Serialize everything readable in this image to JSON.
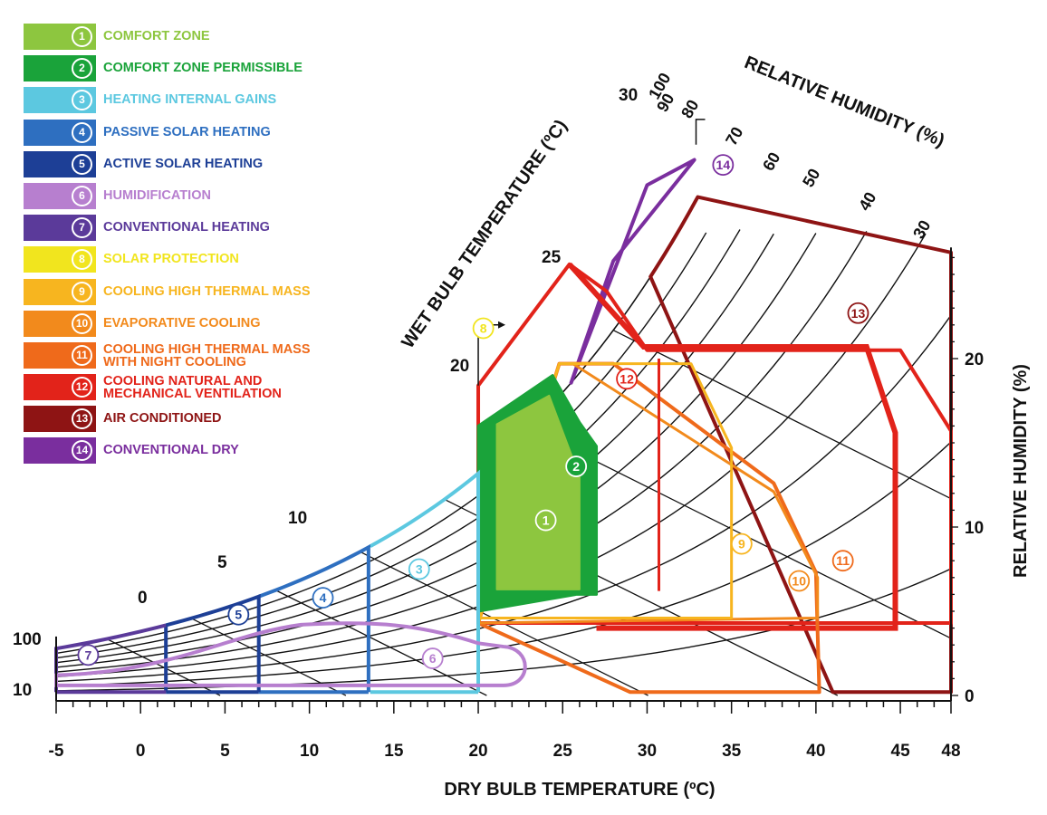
{
  "chart_data": {
    "type": "psychrometric-chart",
    "xlabel": "DRY BULB TEMPERATURE (ºC)",
    "ylabel": "RELATIVE  HUMIDITY (%)",
    "wet_bulb_label": "WET BULB TEMPERATURE (ºC)",
    "rh_label": "RELATIVE   HUMIDITY (%)",
    "x_ticks": [
      "-5",
      "0",
      "5",
      "10",
      "15",
      "20",
      "25",
      "30",
      "35",
      "40",
      "45",
      "48"
    ],
    "x_tick_values": [
      -5,
      0,
      5,
      10,
      15,
      20,
      25,
      30,
      35,
      40,
      45,
      48
    ],
    "xlim": [
      -5,
      48
    ],
    "y_right_ticks": [
      {
        "label": "0",
        "value": 0
      },
      {
        "label": "10",
        "value": 10
      },
      {
        "label": "20",
        "value": 20
      }
    ],
    "y_left_ticks": [
      {
        "label": "100",
        "value": 100
      },
      {
        "label": "10",
        "value": 10
      }
    ],
    "wet_bulb_ticks": [
      "0",
      "5",
      "10",
      "20",
      "25",
      "30"
    ],
    "rh_curve_labels": [
      "100",
      "90",
      "80",
      "70",
      "60",
      "50",
      "40",
      "30"
    ],
    "zones": [
      {
        "id": 1,
        "name": "COMFORT ZONE",
        "color": "#8dc63f"
      },
      {
        "id": 2,
        "name": "COMFORT ZONE PERMISSIBLE",
        "color": "#1aa33a"
      },
      {
        "id": 3,
        "name": "HEATING INTERNAL GAINS",
        "color": "#5cc8e0"
      },
      {
        "id": 4,
        "name": "PASSIVE SOLAR HEATING",
        "color": "#2e6fc0"
      },
      {
        "id": 5,
        "name": "ACTIVE SOLAR HEATING",
        "color": "#1d3f96"
      },
      {
        "id": 6,
        "name": "HUMIDIFICATION",
        "color": "#b77fcf"
      },
      {
        "id": 7,
        "name": "CONVENTIONAL HEATING",
        "color": "#5b3a9a"
      },
      {
        "id": 8,
        "name": "SOLAR PROTECTION",
        "color": "#f1e51e"
      },
      {
        "id": 9,
        "name": "COOLING HIGH THERMAL MASS",
        "color": "#f7b51f"
      },
      {
        "id": 10,
        "name": "EVAPORATIVE COOLING",
        "color": "#f28a1c"
      },
      {
        "id": 11,
        "name": "COOLING HIGH THERMAL MASS\nWITH NIGHT COOLING",
        "color": "#ef6a1b"
      },
      {
        "id": 12,
        "name": "COOLING NATURAL AND\nMECHANICAL VENTILATION",
        "color": "#e2231a"
      },
      {
        "id": 13,
        "name": "AIR CONDITIONED",
        "color": "#8e1414"
      },
      {
        "id": 14,
        "name": "CONVENTIONAL DRY",
        "color": "#7a2e9e"
      }
    ],
    "zone_label_positions": [
      {
        "id": 1,
        "x": 24.0,
        "y": 10.4
      },
      {
        "id": 2,
        "x": 25.8,
        "y": 13.6
      },
      {
        "id": 3,
        "x": 16.5,
        "y": 7.5
      },
      {
        "id": 4,
        "x": 10.8,
        "y": 5.8
      },
      {
        "id": 5,
        "x": 5.8,
        "y": 4.8
      },
      {
        "id": 6,
        "x": 17.3,
        "y": 2.2
      },
      {
        "id": 7,
        "x": -3.1,
        "y": 2.4
      },
      {
        "id": 8,
        "x": 20.3,
        "y": 21.8
      },
      {
        "id": 9,
        "x": 35.6,
        "y": 9.0
      },
      {
        "id": 10,
        "x": 39.0,
        "y": 6.8
      },
      {
        "id": 11,
        "x": 41.6,
        "y": 8.0
      },
      {
        "id": 12,
        "x": 28.8,
        "y": 18.8
      },
      {
        "id": 13,
        "x": 42.5,
        "y": 22.7
      },
      {
        "id": 14,
        "x": 34.5,
        "y": 31.5
      }
    ]
  }
}
